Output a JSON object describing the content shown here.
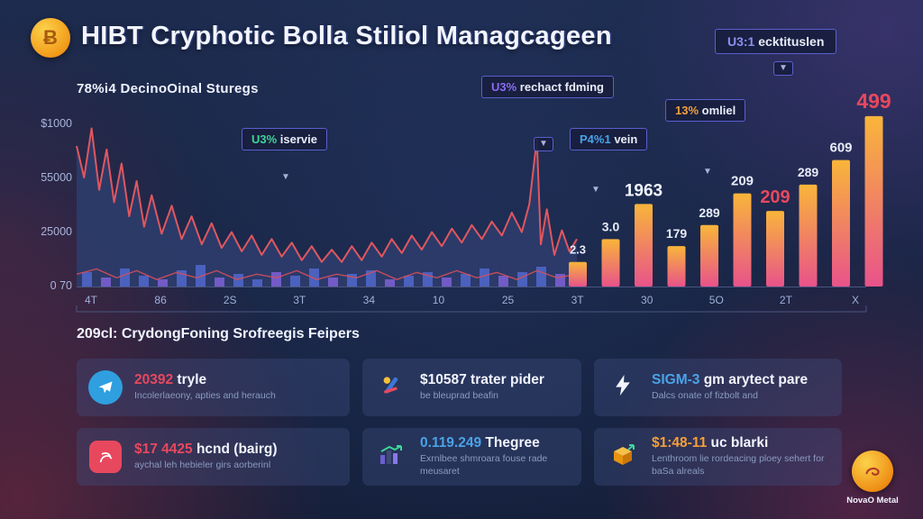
{
  "header": {
    "title": "HIBT Cryphotic Bolla Stiliol Managcageen",
    "coin_glyph": "Ƀ",
    "badge": {
      "value": "U3:1",
      "value_color": "#8a8ff0",
      "label": " ecktituslen"
    }
  },
  "chart_data": {
    "type": "composite: line area with volume and gradient bar series",
    "title": "78%i4 DecinoOinal Sturegs",
    "yticks": [
      "$1000",
      "55000",
      "25000",
      "0 70"
    ],
    "xticks": [
      "4T",
      "86",
      "2S",
      "3T",
      "34",
      "10",
      "25",
      "3T",
      "30",
      "5O",
      "2T",
      "X"
    ],
    "area_color": "#2d3c6b",
    "bar_gradient": [
      "#f9b53a",
      "#e8538a"
    ],
    "line": {
      "name": "price-line",
      "color": "#e0575f",
      "points": [
        [
          0,
          80
        ],
        [
          1.5,
          62
        ],
        [
          3,
          90
        ],
        [
          4.5,
          55
        ],
        [
          6,
          78
        ],
        [
          7.5,
          48
        ],
        [
          9,
          70
        ],
        [
          10.5,
          40
        ],
        [
          12,
          60
        ],
        [
          13.5,
          34
        ],
        [
          15,
          52
        ],
        [
          17,
          30
        ],
        [
          19,
          46
        ],
        [
          21,
          27
        ],
        [
          23,
          40
        ],
        [
          25,
          24
        ],
        [
          27,
          36
        ],
        [
          29,
          22
        ],
        [
          31,
          31
        ],
        [
          33,
          20
        ],
        [
          35,
          29
        ],
        [
          37,
          18
        ],
        [
          39,
          27
        ],
        [
          41,
          17
        ],
        [
          43,
          25
        ],
        [
          45,
          15
        ],
        [
          47,
          23
        ],
        [
          49,
          14
        ],
        [
          51,
          21
        ],
        [
          53,
          14
        ],
        [
          55,
          23
        ],
        [
          57,
          15
        ],
        [
          59,
          25
        ],
        [
          61,
          17
        ],
        [
          63,
          27
        ],
        [
          65,
          19
        ],
        [
          67,
          29
        ],
        [
          69,
          21
        ],
        [
          71,
          31
        ],
        [
          73,
          23
        ],
        [
          75,
          33
        ],
        [
          77,
          25
        ],
        [
          79,
          35
        ],
        [
          81,
          27
        ],
        [
          83,
          37
        ],
        [
          85,
          29
        ],
        [
          87,
          42
        ],
        [
          89,
          31
        ],
        [
          90.5,
          47
        ],
        [
          92,
          84
        ],
        [
          92.8,
          24
        ],
        [
          94,
          44
        ],
        [
          95.5,
          18
        ],
        [
          97,
          32
        ],
        [
          98.5,
          20
        ],
        [
          100,
          27
        ]
      ]
    },
    "line2": {
      "name": "baseline-jagged-line",
      "color": "#d44f5c",
      "points": [
        [
          0,
          7
        ],
        [
          4,
          10
        ],
        [
          8,
          5
        ],
        [
          12,
          9
        ],
        [
          16,
          4
        ],
        [
          20,
          8
        ],
        [
          24,
          5
        ],
        [
          28,
          9
        ],
        [
          32,
          4
        ],
        [
          36,
          7
        ],
        [
          40,
          5
        ],
        [
          44,
          9
        ],
        [
          48,
          4
        ],
        [
          52,
          7
        ],
        [
          56,
          5
        ],
        [
          60,
          9
        ],
        [
          64,
          4
        ],
        [
          68,
          8
        ],
        [
          72,
          5
        ],
        [
          76,
          9
        ],
        [
          80,
          5
        ],
        [
          84,
          8
        ],
        [
          88,
          4
        ],
        [
          92,
          9
        ],
        [
          96,
          5
        ],
        [
          100,
          7
        ]
      ]
    },
    "volume": [
      8,
      5,
      10,
      6,
      4,
      9,
      12,
      5,
      7,
      4,
      8,
      6,
      10,
      5,
      7,
      9,
      4,
      6,
      8,
      5,
      7,
      10,
      6,
      8,
      11,
      7
    ],
    "bars": [
      {
        "value": 14,
        "label": "2.3",
        "label_color": "#e8ecf8",
        "label_size": 13
      },
      {
        "value": 27,
        "label": "3.0",
        "label_color": "#e8ecf8",
        "label_size": 14
      },
      {
        "value": 47,
        "label": "1963",
        "label_color": "#f2f5ff",
        "label_size": 19
      },
      {
        "value": 23,
        "label": "179",
        "label_color": "#e8ecf8",
        "label_size": 14
      },
      {
        "value": 35,
        "label": "289",
        "label_color": "#e8ecf8",
        "label_size": 14
      },
      {
        "value": 53,
        "label": "209",
        "label_color": "#e8ecf8",
        "label_size": 15
      },
      {
        "value": 43,
        "label": "209",
        "label_color": "#e8485e",
        "label_size": 20
      },
      {
        "value": 58,
        "label": "289",
        "label_color": "#e8ecf8",
        "label_size": 14
      },
      {
        "value": 72,
        "label": "609",
        "label_color": "#e8ecf8",
        "label_size": 15
      },
      {
        "value": 97,
        "label": "499",
        "label_color": "#e8485e",
        "label_size": 23
      }
    ],
    "annotations": [
      {
        "parts": [
          {
            "text": "U3%",
            "color": "#3ed598"
          },
          {
            "text": " iservie",
            "color": "#e8ecf8"
          }
        ],
        "x": 228,
        "y": 64,
        "ax": 272,
        "ay": 114,
        "boxed": false
      },
      {
        "parts": [
          {
            "text": "U3%",
            "color": "#8a6cf0"
          },
          {
            "text": " rechact fdming",
            "color": "#e8ecf8"
          }
        ],
        "x": 494,
        "y": 6,
        "ax": 552,
        "ay": 74,
        "boxed": true
      },
      {
        "parts": [
          {
            "text": "P4%1",
            "color": "#4aa3e8"
          },
          {
            "text": " vein",
            "color": "#e8ecf8"
          }
        ],
        "x": 592,
        "y": 64,
        "ax": 616,
        "ay": 128,
        "boxed": false
      },
      {
        "parts": [
          {
            "text": "13%",
            "color": "#f5a03a"
          },
          {
            "text": " omliel",
            "color": "#e8ecf8"
          }
        ],
        "x": 698,
        "y": 32,
        "ax": 740,
        "ay": 108,
        "boxed": false
      }
    ]
  },
  "section": {
    "title": "209cl: CrydongFoning Srofreegis Feipers"
  },
  "cards": [
    {
      "icon": "telegram",
      "value": "20392",
      "value_color": "#e8485e",
      "rest": " tryle",
      "desc": "Incolerlaeony, apties and herauch"
    },
    {
      "icon": "tools",
      "value": "$10587",
      "value_color": "#f2f5ff",
      "rest": " trater pider",
      "desc": "be bleuprad beafin"
    },
    {
      "icon": "lightning",
      "value": "SIGM-3",
      "value_color": "#4aa3e8",
      "rest": " gm arytect pare",
      "desc": "Dalcs onate of fizbolt and"
    },
    {
      "icon": "red-badge",
      "value": "$17 4425",
      "value_color": "#e8485e",
      "rest": " hcnd (bairg)",
      "desc": "aychal leh hebieler girs aorberinl"
    },
    {
      "icon": "bar-chart",
      "value": "0.119.249",
      "value_color": "#4aa3e8",
      "rest": " Thegree",
      "desc": "Exrnlbee shmroara fouse rade meusaret"
    },
    {
      "icon": "cube",
      "value": "$1:48-11",
      "value_color": "#f5a03a",
      "rest": " uc blarki",
      "desc": "Lenthroom lie rordeacing ploey sehert for baSa alreals"
    }
  ],
  "footer": {
    "logo_text": "NovaO Metal"
  }
}
